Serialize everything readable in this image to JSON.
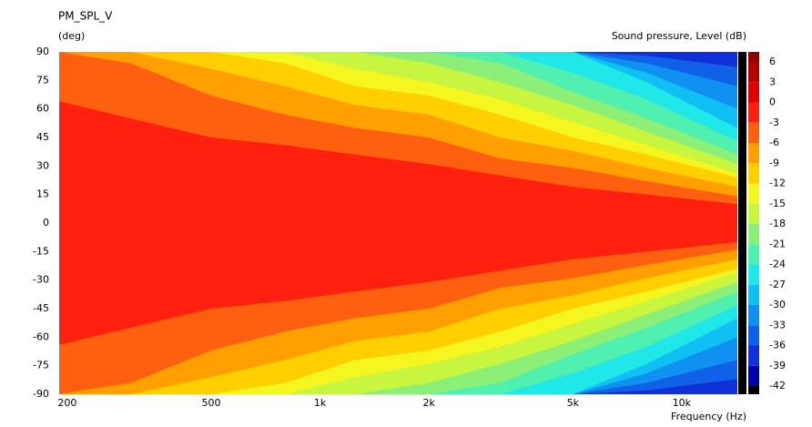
{
  "chart_data": {
    "type": "contour",
    "title": "PM_SPL_V",
    "ylabel": "(deg)",
    "colorbar_label": "Sound pressure, Level  (dB)",
    "xlabel": "Frequency  (Hz)",
    "xscale": "log",
    "xlim": [
      190,
      14250
    ],
    "xticks": [
      200,
      500,
      {
        "value": 1000,
        "label": "1k"
      },
      {
        "value": 2000,
        "label": "2k"
      },
      {
        "value": 5000,
        "label": "5k"
      },
      {
        "value": 10000,
        "label": "10k"
      }
    ],
    "ylim": [
      -90,
      90
    ],
    "yticks": [
      90,
      75,
      60,
      45,
      30,
      15,
      0,
      -15,
      -30,
      -45,
      -60,
      -75,
      -90
    ],
    "x": [
      190,
      300,
      500,
      800,
      1250,
      2000,
      3150,
      5000,
      8000,
      14250
    ],
    "levels": [
      {
        "level": -36,
        "values": [
          90,
          90,
          90,
          90,
          90,
          90,
          90,
          90,
          88,
          82
        ]
      },
      {
        "level": -33,
        "values": [
          90,
          90,
          90,
          90,
          90,
          90,
          90,
          90,
          84,
          72
        ]
      },
      {
        "level": -30,
        "values": [
          90,
          90,
          90,
          90,
          90,
          90,
          90,
          90,
          79,
          60
        ]
      },
      {
        "level": -27,
        "values": [
          90,
          90,
          90,
          90,
          90,
          90,
          90,
          90,
          74,
          50
        ]
      },
      {
        "level": -24,
        "values": [
          90,
          90,
          90,
          90,
          90,
          90,
          90,
          79,
          65,
          43
        ]
      },
      {
        "level": -21,
        "values": [
          90,
          90,
          90,
          90,
          90,
          90,
          84,
          69,
          55,
          36
        ]
      },
      {
        "level": -18,
        "values": [
          90,
          90,
          90,
          90,
          90,
          84,
          74,
          62,
          48,
          31
        ]
      },
      {
        "level": -15,
        "values": [
          90,
          90,
          90,
          90,
          81,
          74,
          65,
          53,
          41,
          26
        ]
      },
      {
        "level": -12,
        "values": [
          90,
          90,
          90,
          84,
          72,
          67,
          57,
          45,
          36,
          24
        ]
      },
      {
        "level": -9,
        "values": [
          90,
          90,
          81,
          72,
          62,
          57,
          45,
          38,
          29,
          19
        ]
      },
      {
        "level": -6,
        "values": [
          90,
          84,
          67,
          57,
          50,
          45,
          34,
          29,
          22,
          14
        ]
      },
      {
        "level": -3,
        "values": [
          64,
          55,
          45,
          41,
          36,
          31,
          25,
          19,
          15,
          10
        ]
      }
    ],
    "colorbar": {
      "ticks": [
        6,
        3,
        0,
        -3,
        -6,
        -9,
        -12,
        -15,
        -18,
        -21,
        -24,
        -27,
        -30,
        -33,
        -36,
        -39,
        -42
      ],
      "colors": [
        "#8b0000",
        "#b30000",
        "#e00000",
        "#ff2010",
        "#ff6010",
        "#ffa000",
        "#ffcf00",
        "#f5f520",
        "#c8f540",
        "#8cf078",
        "#50f0b0",
        "#20e8e8",
        "#10c0f5",
        "#1090f0",
        "#1060e8",
        "#1030d8",
        "#0000a8",
        "#000000"
      ]
    }
  }
}
